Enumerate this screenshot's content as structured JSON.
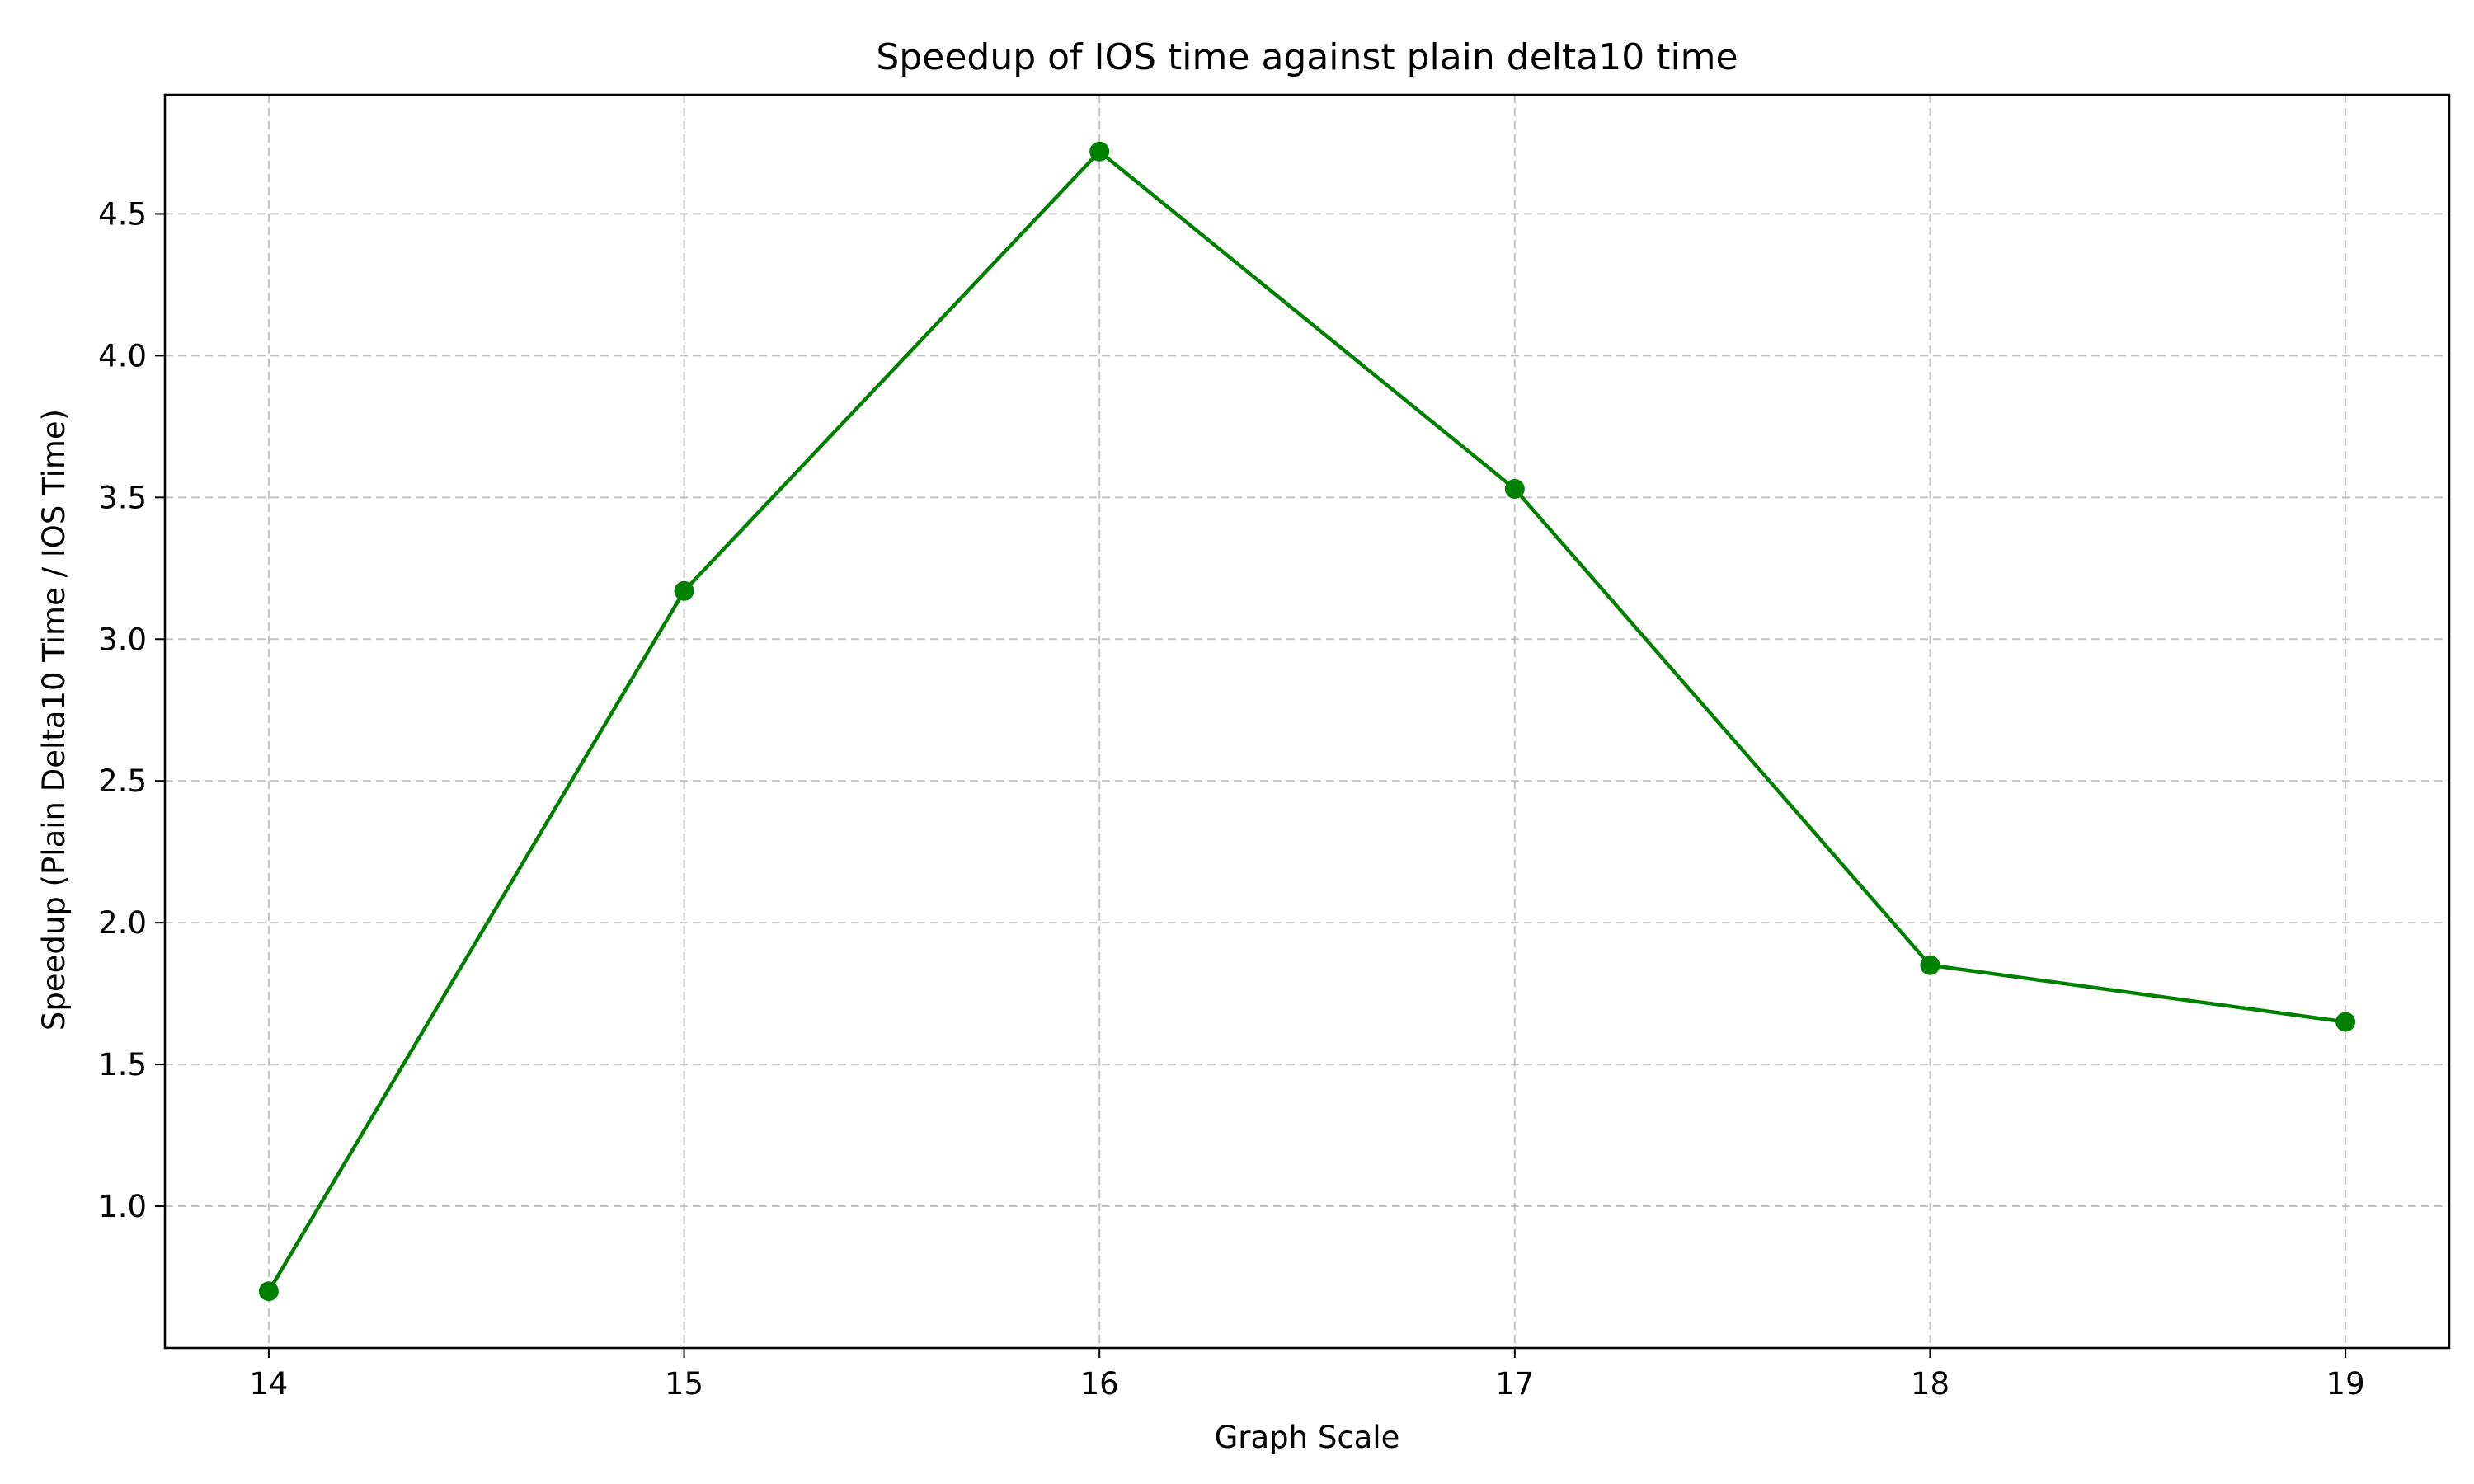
{
  "chart_data": {
    "type": "line",
    "title": "Speedup of IOS time against plain delta10 time",
    "xlabel": "Graph Scale",
    "ylabel": "Speedup (Plain Delta10 Time / IOS Time)",
    "x": [
      14,
      15,
      16,
      17,
      18,
      19
    ],
    "series": [
      {
        "values": [
          0.7,
          3.17,
          4.72,
          3.53,
          1.85,
          1.65
        ],
        "color": "#008000",
        "marker": "circle"
      }
    ],
    "xticks": [
      "14",
      "15",
      "16",
      "17",
      "18",
      "19"
    ],
    "yticks": [
      "1.0",
      "1.5",
      "2.0",
      "2.5",
      "3.0",
      "3.5",
      "4.0",
      "4.5"
    ],
    "xlim": [
      13.75,
      19.25
    ],
    "ylim": [
      0.5,
      4.92
    ],
    "grid": true,
    "grid_style": "dashed"
  }
}
